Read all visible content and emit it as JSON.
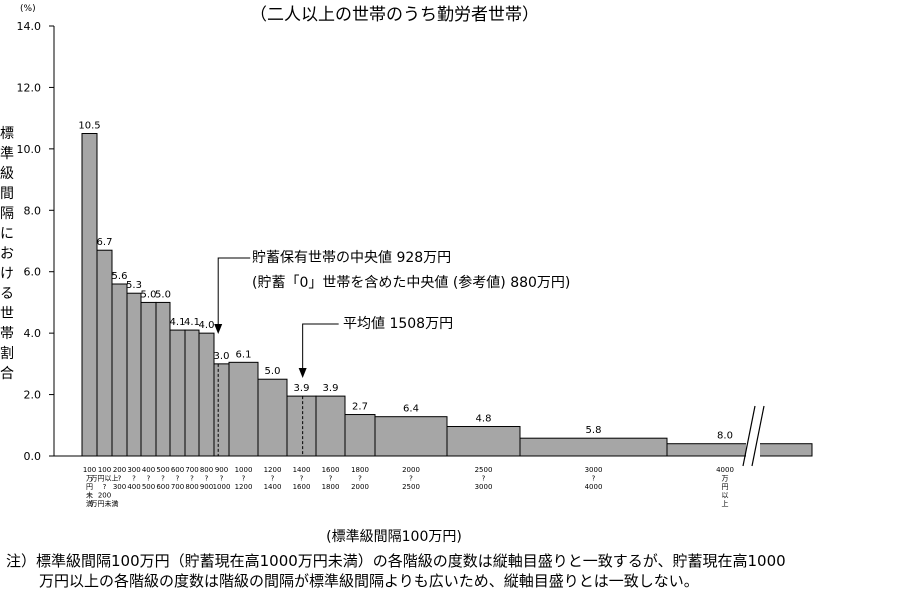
{
  "subtitle": "（二人以上の世帯のうち勤労者世帯）",
  "chart_data": {
    "type": "bar",
    "y_unit": "(%)",
    "ylabel": "標準級間隔における世帯割合",
    "xlabel": "(標準級間隔100万円)",
    "ylim": [
      0,
      14
    ],
    "yticks": [
      "0.0",
      "2.0",
      "4.0",
      "6.0",
      "8.0",
      "10.0",
      "12.0",
      "14.0"
    ],
    "bars": [
      {
        "from": 0,
        "to": 100,
        "value": 10.5,
        "label": "10.5"
      },
      {
        "from": 100,
        "to": 200,
        "value": 6.7,
        "label": "6.7"
      },
      {
        "from": 200,
        "to": 300,
        "value": 5.6,
        "label": "5.6"
      },
      {
        "from": 300,
        "to": 400,
        "value": 5.3,
        "label": "5.3"
      },
      {
        "from": 400,
        "to": 500,
        "value": 5.0,
        "label": "5.0"
      },
      {
        "from": 500,
        "to": 600,
        "value": 5.0,
        "label": "5.0"
      },
      {
        "from": 600,
        "to": 700,
        "value": 4.1,
        "label": "4.1"
      },
      {
        "from": 700,
        "to": 800,
        "value": 4.1,
        "label": "4.1"
      },
      {
        "from": 800,
        "to": 900,
        "value": 4.0,
        "label": "4.0"
      },
      {
        "from": 900,
        "to": 1000,
        "value": 3.0,
        "label": "3.0"
      },
      {
        "from": 1000,
        "to": 1200,
        "value": 3.05,
        "label": "6.1"
      },
      {
        "from": 1200,
        "to": 1400,
        "value": 2.5,
        "label": "5.0"
      },
      {
        "from": 1400,
        "to": 1600,
        "value": 1.95,
        "label": "3.9"
      },
      {
        "from": 1600,
        "to": 1800,
        "value": 1.95,
        "label": "3.9"
      },
      {
        "from": 1800,
        "to": 2000,
        "value": 1.35,
        "label": "2.7"
      },
      {
        "from": 2000,
        "to": 2500,
        "value": 1.28,
        "label": "6.4"
      },
      {
        "from": 2500,
        "to": 3000,
        "value": 0.96,
        "label": "4.8"
      },
      {
        "from": 3000,
        "to": 4000,
        "value": 0.58,
        "label": "5.8"
      },
      {
        "from": 4000,
        "to": null,
        "value": 0.4,
        "label": "8.0"
      }
    ],
    "xtick_labels": [
      [
        "100",
        "万",
        "円",
        "未",
        "満"
      ],
      [
        "100",
        "万円以上",
        "?",
        "200",
        "万円未満"
      ],
      [
        "200",
        "?",
        "300"
      ],
      [
        "300",
        "?",
        "400"
      ],
      [
        "400",
        "?",
        "500"
      ],
      [
        "500",
        "?",
        "600"
      ],
      [
        "600",
        "?",
        "700"
      ],
      [
        "700",
        "?",
        "800"
      ],
      [
        "800",
        "?",
        "900"
      ],
      [
        "900",
        "?",
        "1000"
      ],
      [
        "1000",
        "?",
        "1200"
      ],
      [
        "1200",
        "?",
        "1400"
      ],
      [
        "1400",
        "?",
        "1600"
      ],
      [
        "1600",
        "?",
        "1800"
      ],
      [
        "1800",
        "?",
        "2000"
      ],
      [
        "2000",
        "?",
        "2500"
      ],
      [
        "2500",
        "?",
        "3000"
      ],
      [
        "3000",
        "?",
        "4000"
      ],
      [
        "4000",
        "万",
        "円",
        "以",
        "上"
      ]
    ],
    "markers": [
      {
        "at": 928,
        "lines": [
          "貯蓄保有世帯の中央値 928万円",
          "(貯蓄「0」世帯を含めた中央値 (参考値) 880万円)"
        ]
      },
      {
        "at": 1508,
        "lines": [
          "平均値 1508万円"
        ]
      }
    ]
  },
  "note": {
    "line1": "注）標準級間隔100万円（貯蓄現在高1000万円未満）の各階級の度数は縦軸目盛りと一致するが、貯蓄現在高1000",
    "line2": "万円以上の各階級の度数は階級の間隔が標準級間隔よりも広いため、縦軸目盛りとは一致しない。"
  }
}
